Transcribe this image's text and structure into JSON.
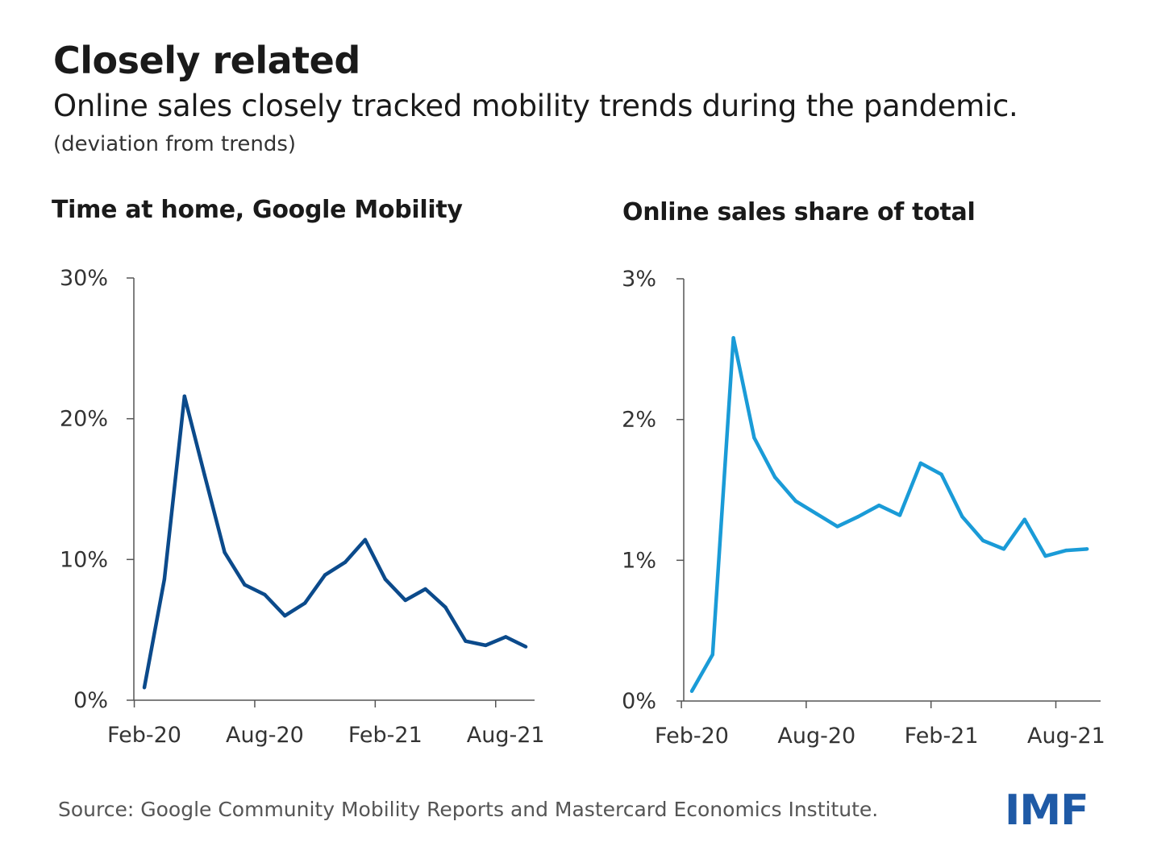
{
  "title": "Closely related",
  "subtitle": "Online sales closely tracked mobility trends during the pandemic.",
  "note": "(deviation from trends)",
  "source": "Source: Google Community Mobility Reports and Mastercard Economics Institute.",
  "logo": "IMF",
  "colors": {
    "mobility": "#0b4a8b",
    "online": "#1a9bd7",
    "logo": "#1f5aa6"
  },
  "chart_data": [
    {
      "type": "line",
      "title": "Time at home, Google Mobility",
      "x": [
        "Feb-20",
        "Mar-20",
        "Apr-20",
        "May-20",
        "Jun-20",
        "Jul-20",
        "Aug-20",
        "Sep-20",
        "Oct-20",
        "Nov-20",
        "Dec-20",
        "Jan-21",
        "Feb-21",
        "Mar-21",
        "Apr-21",
        "May-21",
        "Jun-21",
        "Jul-21",
        "Aug-21",
        "Sep-21"
      ],
      "values": [
        0.9,
        8.6,
        21.6,
        16.0,
        10.5,
        8.2,
        7.5,
        6.0,
        6.9,
        8.9,
        9.8,
        11.4,
        8.6,
        7.1,
        7.9,
        6.6,
        4.2,
        3.9,
        4.5,
        3.8
      ],
      "xticks": [
        "Feb-20",
        "Aug-20",
        "Feb-21",
        "Aug-21"
      ],
      "yticks": [
        "0%",
        "10%",
        "20%",
        "30%"
      ],
      "ylim": [
        0,
        30
      ],
      "grid": false
    },
    {
      "type": "line",
      "title": "Online sales share of total",
      "x": [
        "Feb-20",
        "Mar-20",
        "Apr-20",
        "May-20",
        "Jun-20",
        "Jul-20",
        "Aug-20",
        "Sep-20",
        "Oct-20",
        "Nov-20",
        "Dec-20",
        "Jan-21",
        "Feb-21",
        "Mar-21",
        "Apr-21",
        "May-21",
        "Jun-21",
        "Jul-21",
        "Aug-21",
        "Sep-21"
      ],
      "values": [
        0.07,
        0.33,
        2.58,
        1.87,
        1.59,
        1.42,
        1.33,
        1.24,
        1.31,
        1.39,
        1.32,
        1.69,
        1.61,
        1.31,
        1.14,
        1.08,
        1.29,
        1.03,
        1.07,
        1.08
      ],
      "xticks": [
        "Feb-20",
        "Aug-20",
        "Feb-21",
        "Aug-21"
      ],
      "yticks": [
        "0%",
        "1%",
        "2%",
        "3%"
      ],
      "ylim": [
        0,
        3
      ],
      "grid": false
    }
  ]
}
